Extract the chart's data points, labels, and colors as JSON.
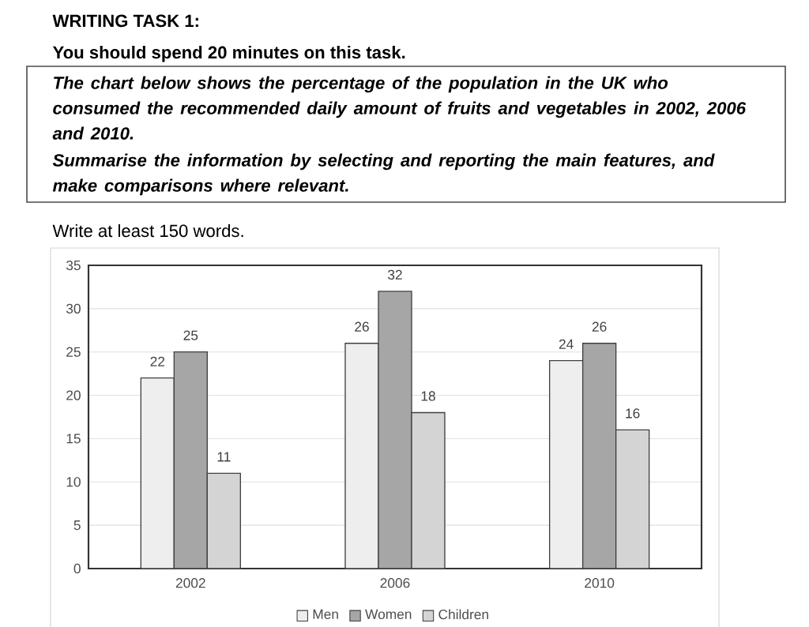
{
  "chart_data": {
    "type": "bar",
    "title": "WRITING TASK 1:",
    "subtitle": "You should spend 20 minutes on this task.",
    "annotations": [
      "The chart below shows the percentage of the population in the UK who consumed the recommended daily amount of fruits and vegetables in 2002, 2006 and 2010.",
      "Summarise the information by selecting and reporting the main features, and make comparisons where relevant.",
      "Write at least 150 words."
    ],
    "categories": [
      "2002",
      "2006",
      "2010"
    ],
    "series": [
      {
        "name": "Men",
        "color": "#eeeeee",
        "values": [
          22,
          26,
          24
        ]
      },
      {
        "name": "Women",
        "color": "#a6a6a6",
        "values": [
          25,
          32,
          26
        ]
      },
      {
        "name": "Children",
        "color": "#d4d4d4",
        "values": [
          11,
          18,
          16
        ]
      }
    ],
    "ylim": [
      0,
      35
    ],
    "yticks": [
      0,
      5,
      10,
      15,
      20,
      25,
      30,
      35
    ],
    "grid": "y",
    "legend": "bottom",
    "data_labels": true
  }
}
